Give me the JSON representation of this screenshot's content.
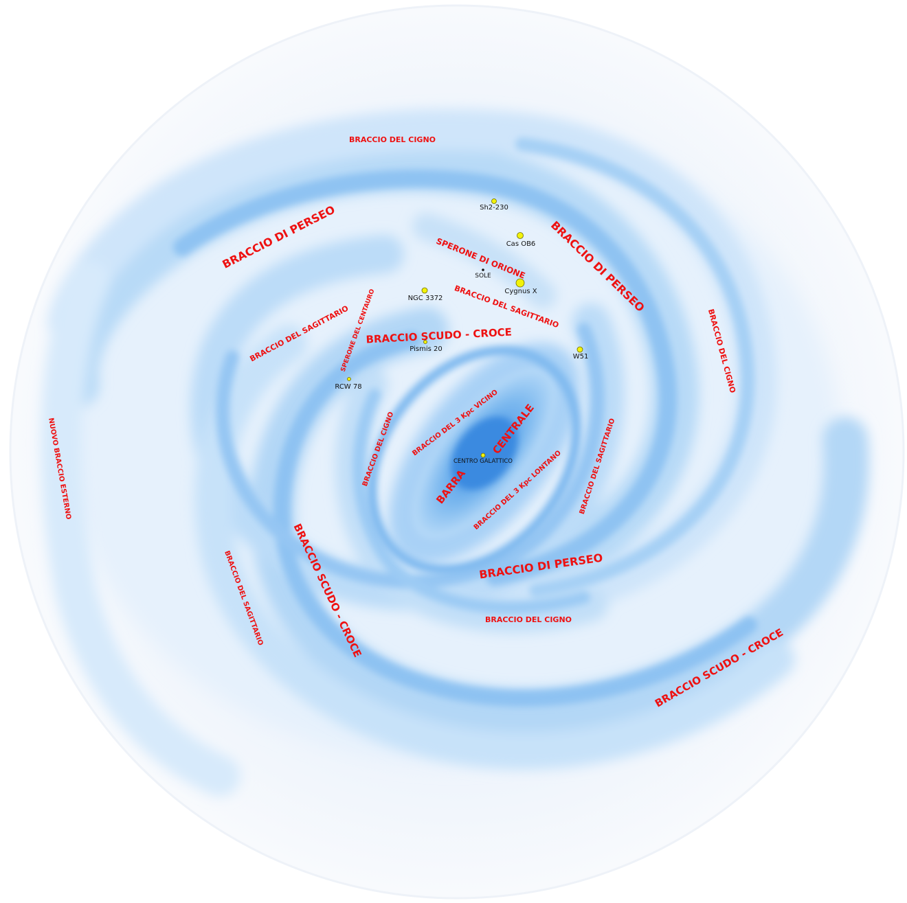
{
  "colors": {
    "background": "#ffffff",
    "halo": "#f6f9fd",
    "arm_light": "#d4e8fb",
    "arm_mid": "#a9d1f6",
    "arm_dark": "#5aa8ee",
    "bar": "#4c9ae8",
    "label": "#ee1111",
    "object": "#f2f20a"
  },
  "labels": {
    "cigno_top": "BRACCIO DEL CIGNO",
    "perseo_top_left": "BRACCIO DI PERSEO",
    "perseo_top_right": "BRACCIO DI PERSEO",
    "cigno_right": "BRACCIO DEL CIGNO",
    "orione": "SPERONE DI ORIONE",
    "sagittario_upper_center": "BRACCIO DEL SAGITTARIO",
    "sagittario_upper_left": "BRACCIO DEL SAGITTARIO",
    "centauro": "SPERONE DEL CENTAURO",
    "scudo_center": "BRACCIO SCUDO - CROCE",
    "tre_kpc_vicino": "BRACCIO DEL 3 Kpc VICINO",
    "barra": "BARRA",
    "centrale": "CENTRALE",
    "cigno_inner_left": "BRACCIO DEL CIGNO",
    "tre_kpc_lontano": "BRACCIO DEL 3 Kpc LONTANO",
    "sagittario_right": "BRACCIO DEL SAGITTARIO",
    "nuovo_esterno": "NUOVO BRACCIO ESTERNO",
    "scudo_left": "BRACCIO SCUDO - CROCE",
    "sagittario_lower_left": "BRACCIO DEL SAGITTARIO",
    "perseo_bottom": "BRACCIO DI PERSEO",
    "cigno_bottom": "BRACCIO DEL CIGNO",
    "scudo_bottom_right": "BRACCIO SCUDO - CROCE"
  },
  "objects": {
    "sh2_230": "Sh2-230",
    "cas_ob6": "Cas OB6",
    "sole": "SOLE",
    "cygnus_x": "Cygnus X",
    "ngc_3372": "NGC 3372",
    "pismis_20": "Pismis 20",
    "w51": "W51",
    "rcw_78": "RCW 78",
    "centro_galattico": "CENTRO GALATTICO"
  }
}
